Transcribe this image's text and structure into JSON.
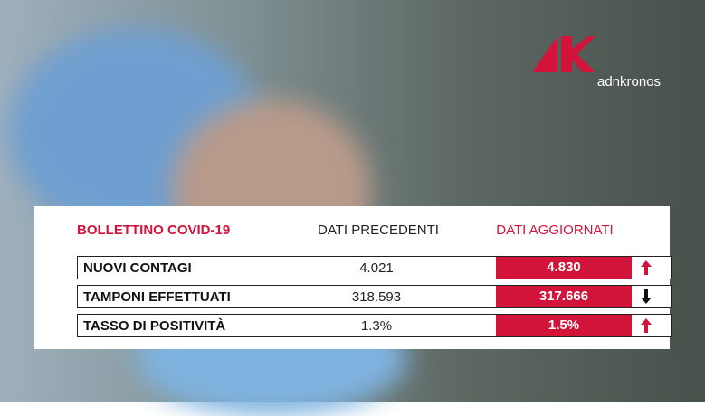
{
  "logo": "adnkronos",
  "table": {
    "headers": [
      "BOLLETTINO COVID-19",
      "DATI PRECEDENTI",
      "DATI AGGIORNATI"
    ],
    "rows": [
      [
        "NUOVI CONTAGI",
        "4.021",
        "4.830"
      ],
      [
        "TAMPONI EFFETTUATI",
        "318.593",
        "317.666"
      ],
      [
        "TASSO DI POSITIVITÀ",
        "1.3%",
        "1.5%"
      ]
    ]
  }
}
